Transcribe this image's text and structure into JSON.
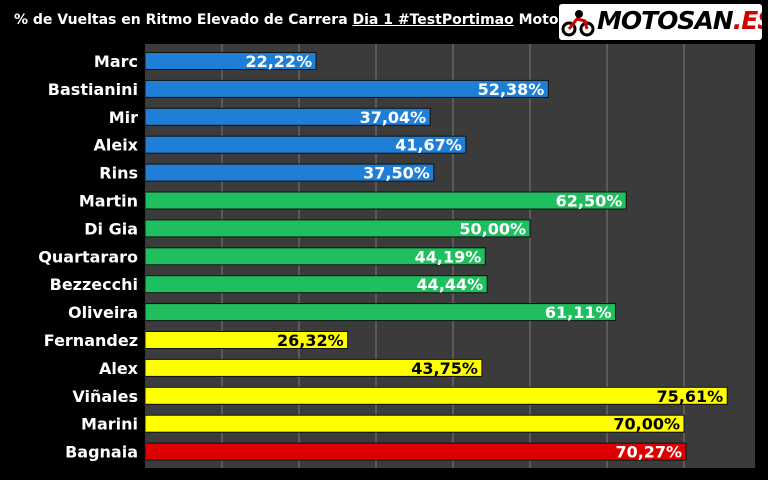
{
  "title": {
    "part1": "% de Vueltas en Ritmo Elevado de Carrera ",
    "part2": "Dia 1 #TestPortimao",
    "part3": " MotoGP"
  },
  "logo": {
    "main": "MOTOSAN",
    "suffix": ".ES"
  },
  "colors": {
    "blue": "#1f7fd6",
    "green": "#1fbf5f",
    "yellow": "#ffff00",
    "red": "#dd0000",
    "plot_bg": "#3b3b3b",
    "grid": "#7a7a7a"
  },
  "chart_data": {
    "type": "bar",
    "orientation": "horizontal",
    "categories": [
      "Marc",
      "Bastianini",
      "Mir",
      "Aleix",
      "Rins",
      "Martin",
      "Di Gia",
      "Quartararo",
      "Bezzecchi",
      "Oliveira",
      "Fernandez",
      "Alex",
      "Viñales",
      "Marini",
      "Bagnaia"
    ],
    "values": [
      22.22,
      52.38,
      37.04,
      41.67,
      37.5,
      62.5,
      50.0,
      44.19,
      44.44,
      61.11,
      26.32,
      43.75,
      75.61,
      70.0,
      70.27
    ],
    "labels": [
      "22,22%",
      "52,38%",
      "37,04%",
      "41,67%",
      "37,50%",
      "62,50%",
      "50,00%",
      "44,19%",
      "44,44%",
      "61,11%",
      "26,32%",
      "43,75%",
      "75,61%",
      "70,00%",
      "70,27%"
    ],
    "bar_colors": [
      "blue",
      "blue",
      "blue",
      "blue",
      "blue",
      "green",
      "green",
      "green",
      "green",
      "green",
      "yellow",
      "yellow",
      "yellow",
      "yellow",
      "red"
    ],
    "xlim": [
      0,
      80
    ],
    "grid": true,
    "legend": "none"
  }
}
